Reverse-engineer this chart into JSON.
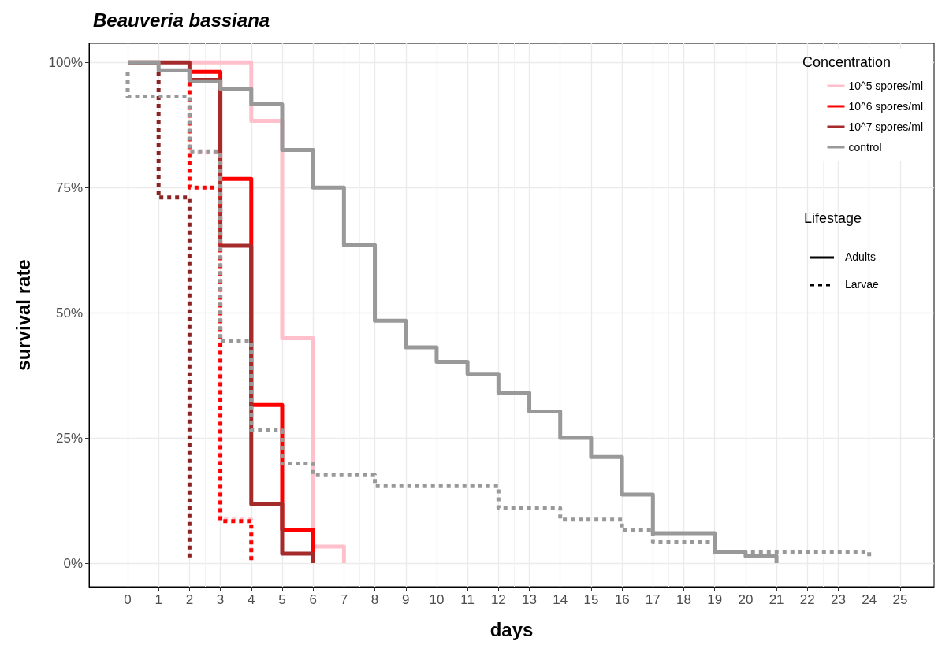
{
  "chart_data": {
    "type": "step",
    "title": "Beauveria bassiana",
    "xlabel": "days",
    "ylabel": "survival rate",
    "legend_title": "Concentration",
    "legend": "top right",
    "grid": true,
    "marker": "none",
    "xlim": [
      -1.25,
      26.1
    ],
    "xticks": [
      0,
      1,
      2,
      3,
      4,
      5,
      6,
      7,
      8,
      9,
      10,
      11,
      12,
      13,
      14,
      15,
      16,
      17,
      18,
      19,
      20,
      21,
      22,
      23,
      24,
      25
    ],
    "ylim": [
      -0.047,
      1.038
    ],
    "yticks": [
      {
        "value": 0,
        "label": "0%"
      },
      {
        "value": 0.25,
        "label": "25%"
      },
      {
        "value": 0.5,
        "label": "50%"
      },
      {
        "value": 0.75,
        "label": "75%"
      },
      {
        "value": 1,
        "label": "100%"
      }
    ],
    "annotations": [
      "Lifestage",
      "Adults",
      "Larvae"
    ],
    "series": [
      {
        "name": "10^5 spores/ml",
        "color": "#ffc0cb",
        "line_style": "solid",
        "x": [
          2,
          4,
          5,
          6,
          7
        ],
        "values": [
          1,
          0.883,
          0.449,
          0.033,
          0
        ]
      },
      {
        "name": "10^6 spores/ml",
        "color": "#ff0000",
        "line_style": "solid",
        "x": [
          2,
          3,
          4,
          5,
          6
        ],
        "values": [
          0.981,
          0.767,
          0.316,
          0.067,
          0
        ]
      },
      {
        "name": "10^7 spores/ml",
        "color": "#a52a2a",
        "line_style": "solid",
        "x": [
          0,
          2,
          3,
          4,
          5,
          6
        ],
        "values": [
          1,
          0.965,
          0.634,
          0.118,
          0.019,
          0
        ]
      },
      {
        "name": "control",
        "color": "#999999",
        "line_style": "solid",
        "x": [
          0,
          1,
          2,
          3,
          4,
          5,
          6,
          7,
          8,
          9,
          10,
          11,
          12,
          13,
          14,
          15,
          16,
          17,
          19,
          20,
          21
        ],
        "values": [
          1,
          0.984,
          0.962,
          0.947,
          0.916,
          0.825,
          0.75,
          0.635,
          0.484,
          0.431,
          0.402,
          0.378,
          0.34,
          0.303,
          0.25,
          0.212,
          0.137,
          0.06,
          0.022,
          0.014,
          0
        ]
      },
      {
        "color": "#ffc0cb",
        "line_style": "dotted",
        "x": [
          2,
          3,
          4
        ],
        "values": [
          0.82,
          0.087,
          0
        ]
      },
      {
        "color": "#ff0000",
        "line_style": "dotted",
        "x": [
          2,
          2,
          3,
          4
        ],
        "values": [
          0.96,
          0.75,
          0.084,
          0
        ]
      },
      {
        "color": "#8b2323",
        "line_style": "dotted",
        "x": [
          1,
          1,
          2
        ],
        "values": [
          0.98,
          0.73,
          0.01
        ]
      },
      {
        "color": "#999999",
        "line_style": "dotted",
        "x": [
          0,
          0,
          2,
          3,
          4,
          5,
          6,
          8,
          12,
          14,
          16,
          17,
          19,
          24
        ],
        "values": [
          0.98,
          0.932,
          0.822,
          0.443,
          0.265,
          0.199,
          0.176,
          0.154,
          0.11,
          0.087,
          0.066,
          0.042,
          0.022,
          0.01
        ]
      }
    ]
  }
}
